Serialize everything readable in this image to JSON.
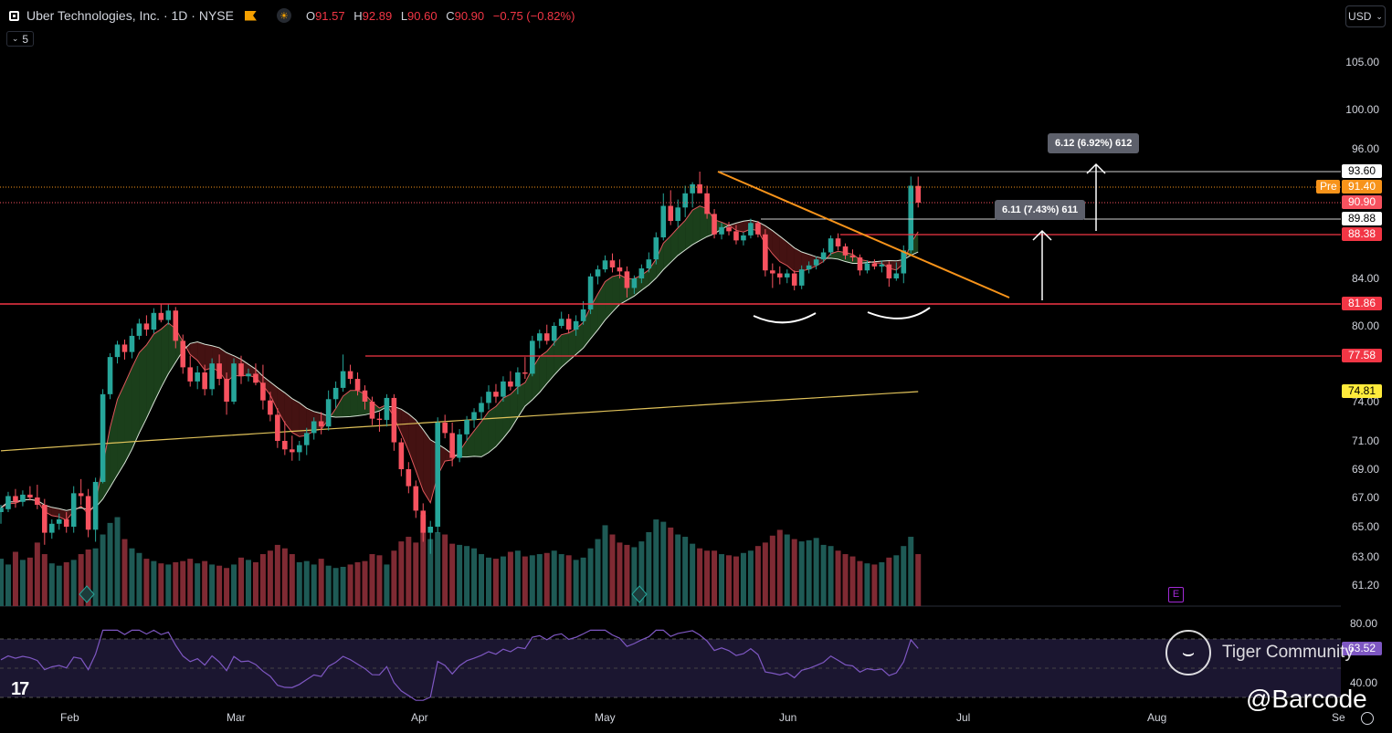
{
  "header": {
    "title": "Uber Technologies, Inc. · 1D · NYSE",
    "o_key": "O",
    "o_val": "91.57",
    "h_key": "H",
    "h_val": "92.89",
    "l_key": "L",
    "l_val": "90.60",
    "c_key": "C",
    "c_val": "90.90",
    "change": "−0.75 (−0.82%)",
    "indicator_count": "5",
    "currency": "USD"
  },
  "price_axis": [
    {
      "label": "105.00",
      "price": 105
    },
    {
      "label": "100.00",
      "price": 100
    },
    {
      "label": "96.00",
      "price": 96
    },
    {
      "label": "84.00",
      "price": 84
    },
    {
      "label": "80.00",
      "price": 80
    },
    {
      "label": "74.00",
      "price": 74
    },
    {
      "label": "71.00",
      "price": 71
    },
    {
      "label": "69.00",
      "price": 69
    },
    {
      "label": "67.00",
      "price": 67
    },
    {
      "label": "65.00",
      "price": 65
    },
    {
      "label": "63.00",
      "price": 63
    },
    {
      "label": "61.20",
      "price": 61.2
    }
  ],
  "price_tags": [
    {
      "label": "93.60",
      "price": 93.6,
      "bg": "#ffffff",
      "fg": "#000000"
    },
    {
      "label": "91.40",
      "price": 91.4,
      "bg": "#f7931a",
      "fg": "#ffffff",
      "prefix": "Pre"
    },
    {
      "label": "90.90",
      "price": 90.9,
      "bg": "#f7525f",
      "fg": "#ffffff"
    },
    {
      "label": "89.88",
      "price": 89.88,
      "bg": "#ffffff",
      "fg": "#000000"
    },
    {
      "label": "88.38",
      "price": 88.38,
      "bg": "#f23645",
      "fg": "#ffffff"
    },
    {
      "label": "81.86",
      "price": 81.86,
      "bg": "#f23645",
      "fg": "#ffffff"
    },
    {
      "label": "77.58",
      "price": 77.58,
      "bg": "#f23645",
      "fg": "#ffffff"
    },
    {
      "label": "74.81",
      "price": 74.81,
      "bg": "#ffeb3b",
      "fg": "#000000"
    }
  ],
  "time_axis": [
    "Feb",
    "Mar",
    "Apr",
    "May",
    "Jun",
    "Jul",
    "Aug",
    "Se"
  ],
  "rsi": {
    "axis_top": "80.00",
    "axis_bottom": "40.00",
    "value": "63.52"
  },
  "measures": [
    {
      "label": "6.12 (6.92%) 612"
    },
    {
      "label": "6.11 (7.43%) 611"
    }
  ],
  "earnings_icon": "E",
  "watermark": {
    "brand": "Tiger Community",
    "handle": "@Barcode"
  },
  "colors": {
    "up": "#26a69a",
    "down": "#f7525f",
    "level": "#f23645",
    "trend": "#f7931a",
    "ma200": "#e0c25a",
    "rsi": "#7e57c2"
  },
  "chart_data": {
    "type": "candlestick",
    "symbol": "UBER",
    "interval": "1D",
    "ohlc": [
      [
        66.0,
        66.5,
        65.2,
        66.3
      ],
      [
        66.2,
        67.4,
        66.0,
        67.1
      ],
      [
        67.1,
        67.6,
        66.3,
        66.7
      ],
      [
        66.7,
        67.5,
        66.4,
        67.2
      ],
      [
        67.2,
        67.8,
        66.8,
        67.0
      ],
      [
        67.0,
        67.9,
        66.2,
        66.5
      ],
      [
        66.5,
        66.9,
        63.8,
        64.6
      ],
      [
        64.6,
        65.5,
        64.2,
        65.2
      ],
      [
        65.2,
        65.9,
        64.8,
        65.5
      ],
      [
        65.5,
        66.0,
        64.6,
        65.0
      ],
      [
        65.0,
        67.8,
        64.6,
        67.3
      ],
      [
        67.3,
        68.3,
        66.5,
        67.1
      ],
      [
        67.1,
        67.6,
        64.3,
        64.8
      ],
      [
        64.8,
        68.4,
        64.0,
        68.1
      ],
      [
        68.1,
        75.0,
        68.0,
        74.6
      ],
      [
        74.6,
        77.8,
        74.2,
        77.5
      ],
      [
        77.5,
        78.8,
        77.0,
        78.5
      ],
      [
        78.5,
        78.9,
        77.3,
        77.9
      ],
      [
        77.9,
        79.8,
        77.4,
        79.2
      ],
      [
        79.2,
        80.6,
        78.9,
        80.2
      ],
      [
        80.2,
        80.9,
        79.2,
        79.7
      ],
      [
        79.7,
        81.5,
        79.4,
        81.1
      ],
      [
        81.1,
        81.9,
        80.3,
        80.5
      ],
      [
        80.5,
        81.9,
        80.1,
        81.3
      ],
      [
        81.3,
        81.6,
        78.2,
        78.8
      ],
      [
        78.8,
        79.3,
        76.2,
        76.7
      ],
      [
        76.7,
        77.6,
        75.2,
        75.6
      ],
      [
        75.6,
        76.8,
        75.0,
        76.3
      ],
      [
        76.3,
        76.9,
        74.5,
        75.0
      ],
      [
        75.0,
        77.4,
        74.5,
        77.0
      ],
      [
        77.0,
        77.7,
        75.3,
        75.8
      ],
      [
        75.8,
        76.3,
        73.0,
        74.0
      ],
      [
        74.0,
        77.4,
        73.8,
        77.0
      ],
      [
        77.0,
        77.6,
        75.4,
        76.0
      ],
      [
        76.0,
        76.6,
        75.6,
        76.2
      ],
      [
        76.2,
        77.0,
        75.3,
        75.5
      ],
      [
        75.5,
        76.9,
        73.4,
        74.1
      ],
      [
        74.1,
        74.8,
        72.5,
        73.0
      ],
      [
        73.0,
        73.5,
        70.5,
        71.0
      ],
      [
        71.0,
        72.5,
        70.0,
        70.4
      ],
      [
        70.4,
        71.4,
        69.6,
        70.2
      ],
      [
        70.2,
        71.0,
        69.6,
        70.7
      ],
      [
        70.7,
        72.0,
        70.0,
        71.6
      ],
      [
        71.6,
        72.8,
        71.1,
        72.5
      ],
      [
        72.5,
        73.2,
        71.5,
        72.1
      ],
      [
        72.1,
        74.9,
        71.8,
        74.2
      ],
      [
        74.2,
        75.6,
        73.5,
        75.1
      ],
      [
        75.1,
        77.7,
        74.8,
        76.4
      ],
      [
        76.4,
        76.9,
        75.4,
        75.8
      ],
      [
        75.8,
        76.3,
        74.5,
        74.9
      ],
      [
        74.9,
        75.3,
        73.4,
        74.0
      ],
      [
        74.0,
        74.4,
        72.2,
        72.7
      ],
      [
        72.7,
        73.2,
        71.7,
        72.6
      ],
      [
        72.6,
        74.6,
        72.1,
        74.3
      ],
      [
        74.3,
        74.6,
        70.3,
        70.9
      ],
      [
        70.9,
        71.2,
        68.5,
        69.0
      ],
      [
        69.0,
        69.5,
        67.3,
        67.8
      ],
      [
        67.8,
        68.2,
        65.6,
        66.1
      ],
      [
        66.1,
        66.6,
        64.0,
        64.6
      ],
      [
        64.6,
        65.4,
        63.2,
        65.0
      ],
      [
        65.0,
        72.8,
        64.6,
        72.4
      ],
      [
        72.4,
        73.0,
        71.2,
        71.6
      ],
      [
        71.6,
        72.4,
        69.2,
        69.8
      ],
      [
        69.8,
        71.9,
        69.5,
        71.5
      ],
      [
        71.5,
        72.9,
        71.0,
        72.6
      ],
      [
        72.6,
        73.5,
        72.0,
        73.2
      ],
      [
        73.2,
        74.4,
        72.6,
        73.9
      ],
      [
        73.9,
        75.3,
        73.4,
        74.8
      ],
      [
        74.8,
        75.4,
        73.9,
        74.4
      ],
      [
        74.4,
        76.0,
        74.0,
        75.6
      ],
      [
        75.6,
        76.4,
        74.9,
        75.2
      ],
      [
        75.2,
        76.7,
        74.6,
        76.3
      ],
      [
        76.3,
        77.5,
        75.8,
        76.2
      ],
      [
        76.2,
        79.2,
        76.0,
        78.8
      ],
      [
        78.8,
        79.7,
        78.2,
        79.4
      ],
      [
        79.4,
        80.1,
        78.5,
        78.8
      ],
      [
        78.8,
        80.3,
        78.4,
        80.0
      ],
      [
        80.0,
        81.2,
        79.8,
        80.6
      ],
      [
        80.6,
        81.0,
        79.4,
        79.7
      ],
      [
        79.7,
        80.9,
        79.2,
        80.4
      ],
      [
        80.4,
        82.1,
        80.1,
        81.4
      ],
      [
        81.4,
        84.5,
        81.0,
        84.2
      ],
      [
        84.2,
        85.3,
        83.5,
        84.9
      ],
      [
        84.9,
        86.3,
        84.6,
        85.8
      ],
      [
        85.8,
        86.5,
        84.6,
        85.1
      ],
      [
        85.1,
        85.9,
        84.0,
        84.7
      ],
      [
        84.7,
        85.2,
        82.4,
        83.2
      ],
      [
        83.2,
        84.3,
        82.7,
        84.0
      ],
      [
        84.0,
        85.4,
        83.6,
        85.0
      ],
      [
        85.0,
        86.6,
        84.6,
        85.9
      ],
      [
        85.9,
        88.6,
        85.4,
        88.1
      ],
      [
        88.1,
        91.2,
        87.8,
        90.7
      ],
      [
        90.7,
        91.3,
        89.3,
        89.7
      ],
      [
        89.7,
        91.0,
        89.1,
        90.6
      ],
      [
        90.6,
        91.6,
        90.0,
        91.2
      ],
      [
        91.2,
        92.1,
        90.6,
        91.8
      ],
      [
        91.8,
        93.6,
        91.3,
        91.2
      ],
      [
        91.2,
        91.6,
        89.9,
        90.2
      ],
      [
        90.2,
        90.5,
        88.0,
        88.4
      ],
      [
        88.4,
        89.5,
        87.9,
        89.1
      ],
      [
        89.1,
        89.6,
        88.3,
        88.7
      ],
      [
        88.7,
        89.3,
        87.4,
        87.8
      ],
      [
        87.8,
        88.6,
        87.3,
        88.3
      ],
      [
        88.3,
        89.9,
        88.0,
        89.5
      ],
      [
        89.5,
        89.7,
        88.1,
        88.4
      ],
      [
        88.4,
        88.9,
        84.2,
        84.8
      ],
      [
        84.8,
        85.5,
        83.2,
        84.5
      ],
      [
        84.5,
        85.2,
        83.5,
        84.1
      ],
      [
        84.1,
        84.9,
        83.6,
        84.5
      ],
      [
        84.5,
        84.8,
        83.0,
        83.4
      ],
      [
        83.4,
        85.3,
        83.1,
        84.9
      ],
      [
        84.9,
        85.7,
        84.5,
        85.3
      ],
      [
        85.3,
        86.2,
        84.9,
        85.9
      ],
      [
        85.9,
        87.0,
        85.6,
        86.6
      ],
      [
        86.6,
        88.3,
        86.3,
        88.0
      ],
      [
        88.0,
        88.5,
        86.8,
        87.2
      ],
      [
        87.2,
        87.5,
        85.9,
        86.3
      ],
      [
        86.3,
        86.9,
        85.7,
        86.1
      ],
      [
        86.1,
        86.4,
        84.3,
        84.8
      ],
      [
        84.8,
        85.8,
        84.5,
        85.5
      ],
      [
        85.5,
        85.9,
        84.9,
        85.2
      ],
      [
        85.2,
        85.8,
        84.6,
        85.4
      ],
      [
        85.4,
        85.7,
        83.3,
        84.0
      ],
      [
        84.0,
        85.6,
        83.8,
        84.5
      ],
      [
        84.5,
        87.3,
        83.6,
        86.8
      ],
      [
        86.8,
        92.9,
        86.5,
        91.6
      ],
      [
        91.57,
        92.89,
        90.6,
        90.9
      ]
    ],
    "volume": [
      41,
      36,
      47,
      40,
      42,
      55,
      45,
      37,
      35,
      38,
      40,
      45,
      49,
      50,
      62,
      72,
      77,
      58,
      50,
      46,
      41,
      39,
      37,
      36,
      38,
      39,
      41,
      37,
      39,
      36,
      35,
      33,
      36,
      42,
      40,
      38,
      45,
      48,
      53,
      50,
      45,
      38,
      39,
      36,
      41,
      35,
      33,
      34,
      36,
      38,
      39,
      45,
      44,
      36,
      48,
      56,
      60,
      55,
      79,
      58,
      64,
      62,
      54,
      53,
      52,
      50,
      45,
      42,
      41,
      43,
      47,
      48,
      43,
      44,
      45,
      46,
      48,
      45,
      44,
      40,
      42,
      50,
      58,
      70,
      62,
      55,
      53,
      51,
      56,
      64,
      75,
      73,
      68,
      62,
      60,
      54,
      50,
      48,
      48,
      45,
      44,
      43,
      46,
      48,
      52,
      55,
      61,
      66,
      62,
      58,
      56,
      57,
      59,
      53,
      52,
      48,
      45,
      43,
      39,
      37,
      36,
      38,
      42,
      44,
      52,
      60,
      45
    ],
    "horizontal_levels": [
      93.6,
      89.88,
      88.38,
      81.86,
      77.58
    ],
    "ma200_last": 74.81,
    "rsi_last": 63.52
  }
}
